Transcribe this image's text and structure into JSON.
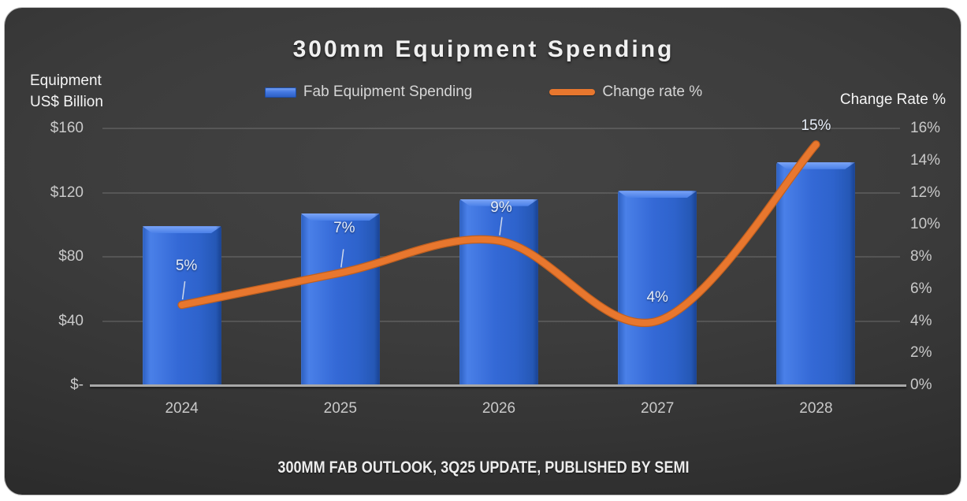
{
  "panel": {
    "title": "300mm Equipment Spending",
    "footer": "300MM FAB OUTLOOK, 3Q25 UPDATE, PUBLISHED BY SEMI"
  },
  "legend": [
    {
      "label": "Fab Equipment Spending",
      "swatch": "bar",
      "color": "#3469d6"
    },
    {
      "label": "Change rate %",
      "swatch": "line",
      "color": "#e8772e"
    }
  ],
  "axes": {
    "left_title_line1": "Equipment",
    "left_title_line2": "US$ Billion",
    "right_title": "Change Rate %"
  },
  "chart_data": {
    "type": "bar",
    "subtype": "bar+line combo",
    "categories": [
      "2024",
      "2025",
      "2026",
      "2027",
      "2028"
    ],
    "series": [
      {
        "name": "Fab Equipment Spending",
        "type": "bar",
        "axis": "left",
        "values": [
          99,
          107,
          116,
          121,
          139
        ],
        "unit": "US$ Billion",
        "color": "#3469d6"
      },
      {
        "name": "Change rate %",
        "type": "line",
        "axis": "right",
        "smooth": true,
        "values": [
          5,
          7,
          9,
          4,
          15
        ],
        "labels": [
          "5%",
          "7%",
          "9%",
          "4%",
          "15%"
        ],
        "color": "#e8772e"
      }
    ],
    "left_axis": {
      "title": "Equipment US$ Billion",
      "min": 0,
      "max": 160,
      "ticks": [
        {
          "label": "$160",
          "value": 160
        },
        {
          "label": "$120",
          "value": 120
        },
        {
          "label": "$80",
          "value": 80
        },
        {
          "label": "$40",
          "value": 40
        },
        {
          "label": "$-",
          "value": 0
        }
      ]
    },
    "right_axis": {
      "title": "Change Rate %",
      "min": 0,
      "max": 16,
      "ticks": [
        {
          "label": "16%",
          "value": 16
        },
        {
          "label": "14%",
          "value": 14
        },
        {
          "label": "12%",
          "value": 12
        },
        {
          "label": "10%",
          "value": 10
        },
        {
          "label": "8%",
          "value": 8
        },
        {
          "label": "6%",
          "value": 6
        },
        {
          "label": "4%",
          "value": 4
        },
        {
          "label": "2%",
          "value": 2
        },
        {
          "label": "0%",
          "value": 0
        }
      ]
    },
    "grid": "horizontal gridlines at left-axis ticks",
    "legend_position": "top center",
    "title": "300mm Equipment Spending",
    "source_note": "300MM FAB OUTLOOK, 3Q25 UPDATE, PUBLISHED BY SEMI"
  }
}
